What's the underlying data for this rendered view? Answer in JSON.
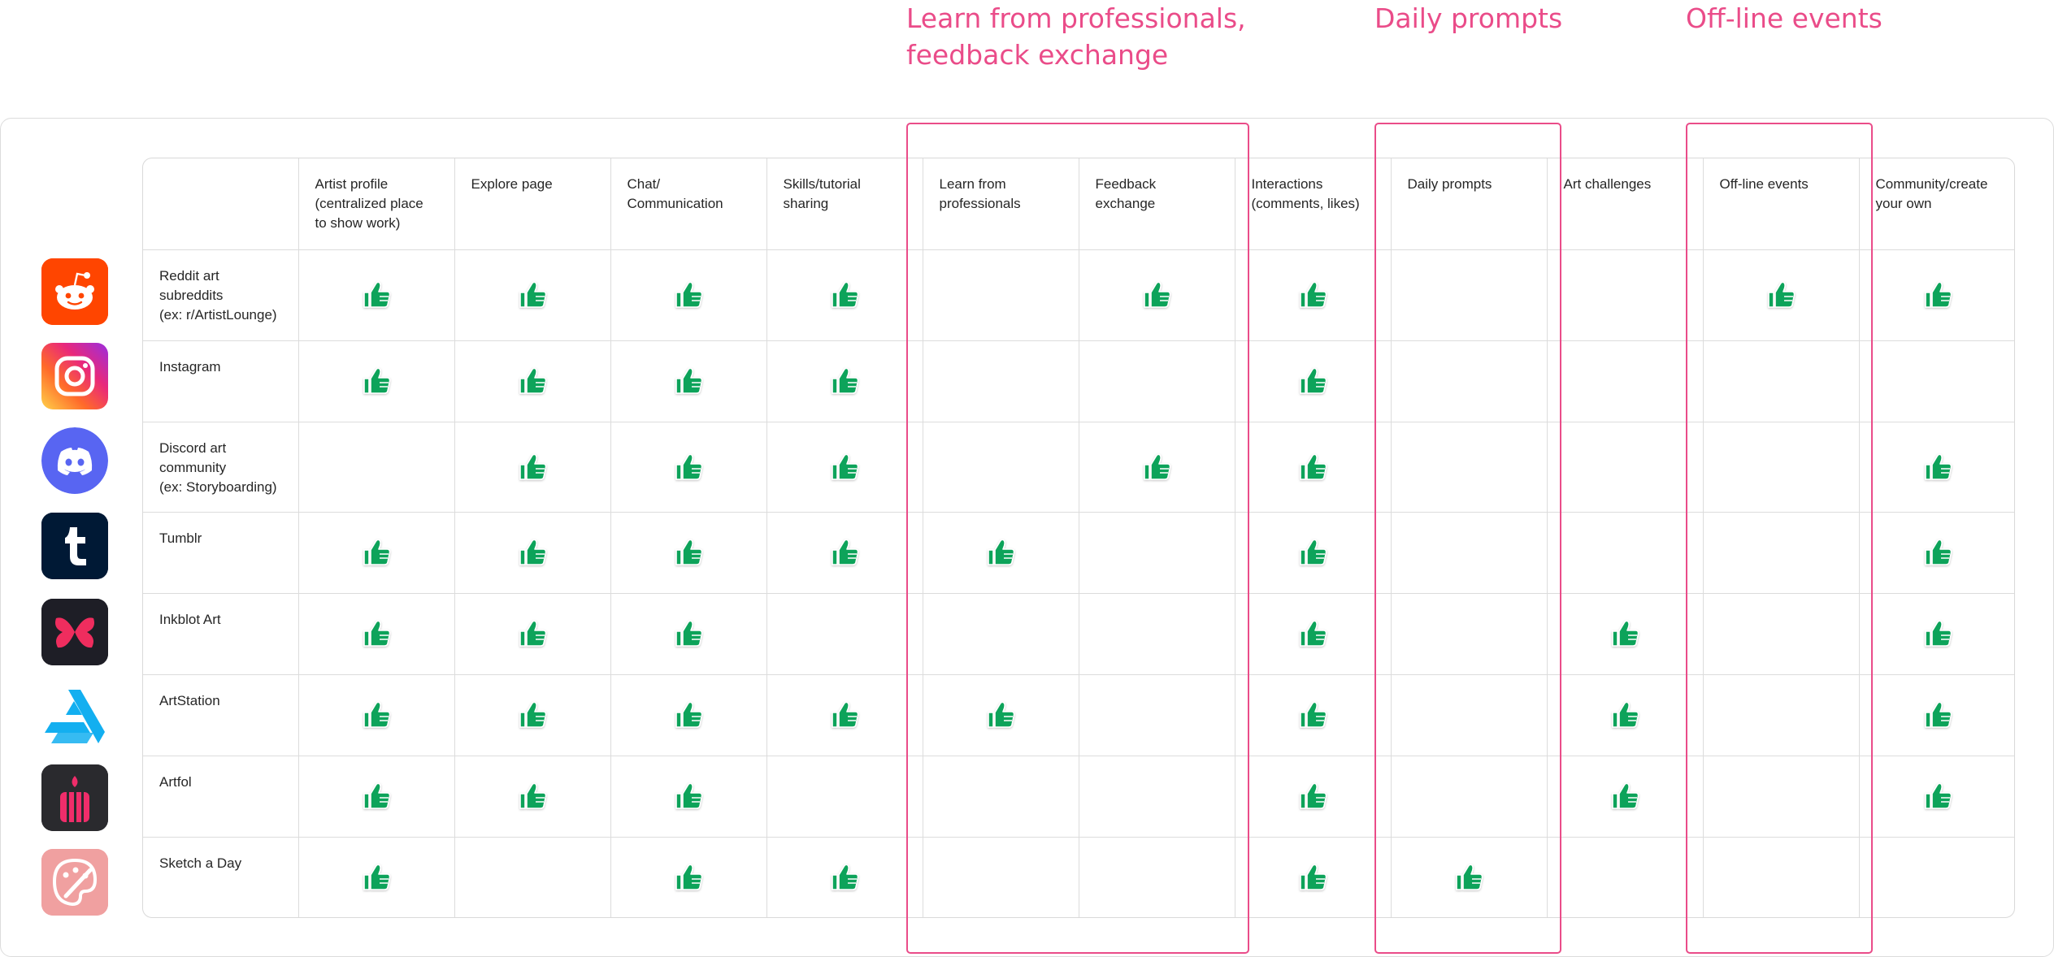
{
  "callouts": [
    {
      "name": "callout-learn-feedback",
      "text": "Learn from professionals,\nfeedback exchange"
    },
    {
      "name": "callout-daily-prompts",
      "text": "Daily prompts"
    },
    {
      "name": "callout-offline-events",
      "text": "Off-line events"
    }
  ],
  "columns": [
    "",
    "Artist profile\n(centralized place\nto show work)",
    "Explore page",
    "Chat/\nCommunication",
    "Skills/tutorial\nsharing",
    "Learn from\nprofessionals",
    "Feedback exchange",
    "Interactions\n(comments, likes)",
    "Daily prompts",
    "Art challenges",
    "Off-line events",
    "Community/create\nyour own"
  ],
  "rows": [
    {
      "label": "Reddit art\nsubreddits\n(ex: r/ArtistLounge)",
      "icon": "reddit-icon",
      "checks": [
        true,
        true,
        true,
        true,
        false,
        true,
        true,
        false,
        false,
        true,
        true
      ]
    },
    {
      "label": "Instagram",
      "icon": "instagram-icon",
      "checks": [
        true,
        true,
        true,
        true,
        false,
        false,
        true,
        false,
        false,
        false,
        false
      ]
    },
    {
      "label": "Discord art\ncommunity\n(ex: Storyboarding)",
      "icon": "discord-icon",
      "checks": [
        false,
        true,
        true,
        true,
        false,
        true,
        true,
        false,
        false,
        false,
        true
      ]
    },
    {
      "label": "Tumblr",
      "icon": "tumblr-icon",
      "checks": [
        true,
        true,
        true,
        true,
        true,
        false,
        true,
        false,
        false,
        false,
        true
      ]
    },
    {
      "label": "Inkblot Art",
      "icon": "inkblot-icon",
      "checks": [
        true,
        true,
        true,
        false,
        false,
        false,
        true,
        false,
        true,
        false,
        true
      ]
    },
    {
      "label": "ArtStation",
      "icon": "artstation-icon",
      "checks": [
        true,
        true,
        true,
        true,
        true,
        false,
        true,
        false,
        true,
        false,
        true
      ]
    },
    {
      "label": "Artfol",
      "icon": "artfol-icon",
      "checks": [
        true,
        true,
        true,
        false,
        false,
        false,
        true,
        false,
        true,
        false,
        true
      ]
    },
    {
      "label": "Sketch a Day",
      "icon": "sketch-a-day-icon",
      "checks": [
        true,
        false,
        true,
        true,
        false,
        false,
        true,
        true,
        false,
        false,
        false
      ]
    }
  ],
  "check_icon": "thumbs-up-icon",
  "colors": {
    "accent": "#ea4c89",
    "check": "#0fa35a",
    "border": "#dcdcdc",
    "reddit": "#ff4500",
    "discord": "#5865f2",
    "tumblr": "#001935",
    "inkblot": "#1e1e26",
    "artstation": "#13aff0",
    "artfol": "#2a2a2e",
    "sketch": "#f0a0a0"
  }
}
